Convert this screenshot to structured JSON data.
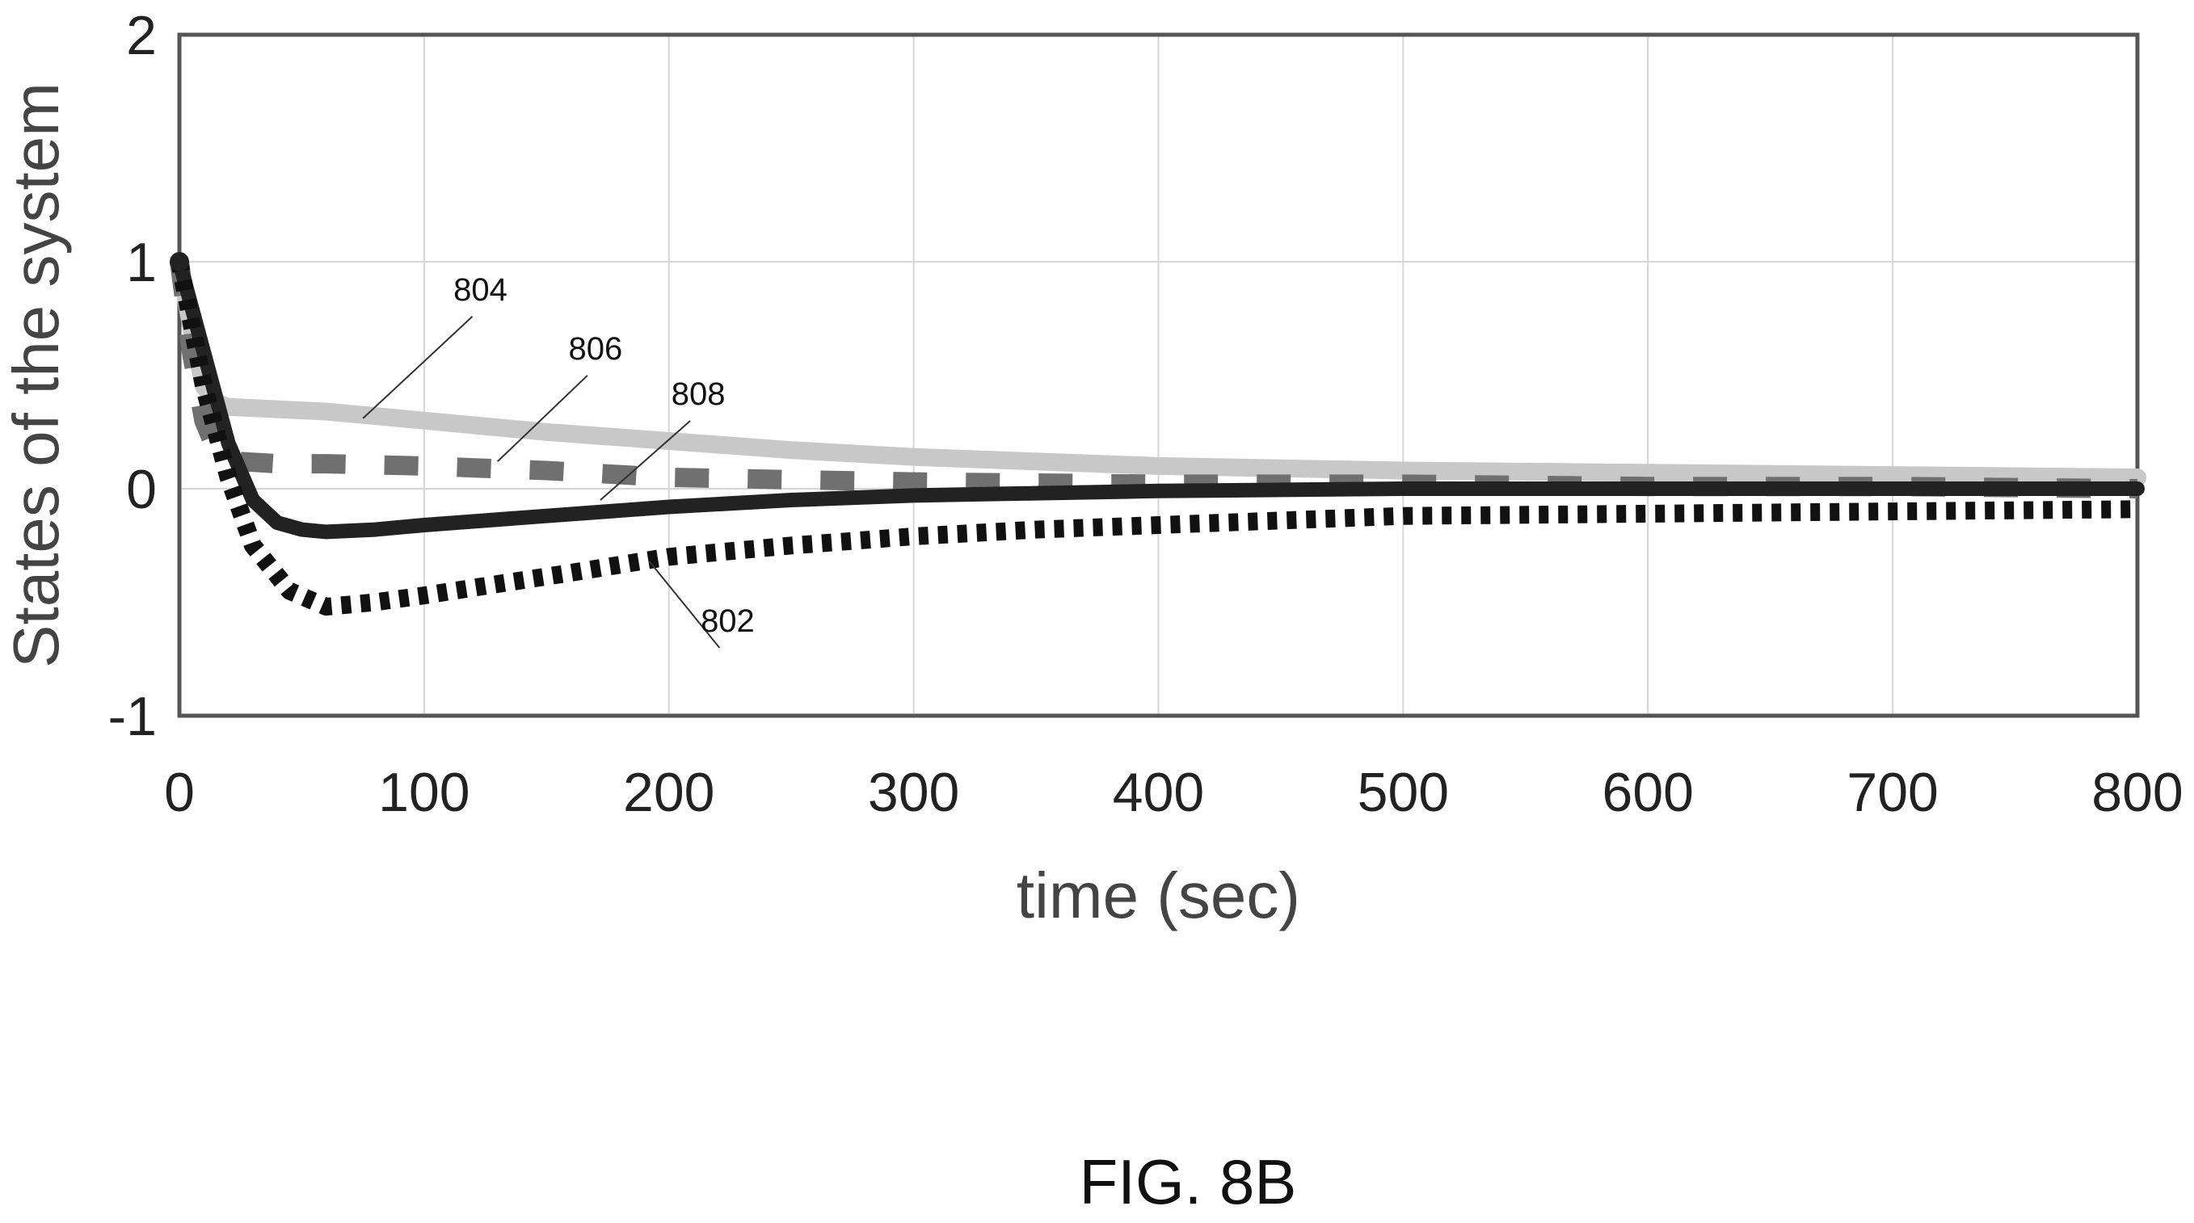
{
  "chart_data": {
    "type": "line",
    "title": "",
    "xlabel": "time (sec)",
    "ylabel": "States of the system",
    "xlim": [
      0,
      800
    ],
    "ylim": [
      -1,
      2
    ],
    "xticks": [
      0,
      100,
      200,
      300,
      400,
      500,
      600,
      700,
      800
    ],
    "yticks": [
      2,
      1,
      0,
      -1
    ],
    "xtick_labels": [
      "0",
      "100",
      "200",
      "300",
      "400",
      "500",
      "600",
      "700",
      "800"
    ],
    "ytick_labels": [
      "2",
      "1",
      "0",
      "-1"
    ],
    "grid": true,
    "legend": "none",
    "series": [
      {
        "ref": "802",
        "style": "dotted",
        "color": "#111111",
        "x": [
          0,
          10,
          20,
          30,
          45,
          60,
          80,
          100,
          130,
          160,
          200,
          250,
          300,
          350,
          400,
          500,
          600,
          700,
          800
        ],
        "y": [
          1.0,
          0.45,
          0.05,
          -0.25,
          -0.45,
          -0.52,
          -0.5,
          -0.47,
          -0.42,
          -0.37,
          -0.3,
          -0.25,
          -0.21,
          -0.18,
          -0.16,
          -0.12,
          -0.11,
          -0.1,
          -0.09
        ]
      },
      {
        "ref": "804",
        "style": "solid",
        "color": "#c8c8c8",
        "x": [
          0,
          5,
          10,
          15,
          20,
          40,
          60,
          80,
          100,
          150,
          200,
          250,
          300,
          350,
          400,
          500,
          600,
          700,
          800
        ],
        "y": [
          1.0,
          0.7,
          0.45,
          0.38,
          0.36,
          0.35,
          0.34,
          0.32,
          0.3,
          0.25,
          0.21,
          0.17,
          0.14,
          0.12,
          0.1,
          0.08,
          0.07,
          0.06,
          0.05
        ]
      },
      {
        "ref": "806",
        "style": "dashed",
        "color": "#707070",
        "x": [
          0,
          5,
          10,
          15,
          25,
          40,
          60,
          100,
          150,
          200,
          250,
          300,
          400,
          500,
          600,
          700,
          800
        ],
        "y": [
          1.0,
          0.6,
          0.3,
          0.17,
          0.12,
          0.11,
          0.11,
          0.1,
          0.08,
          0.05,
          0.04,
          0.03,
          0.02,
          0.02,
          0.01,
          0.01,
          0.0
        ]
      },
      {
        "ref": "808",
        "style": "solid",
        "color": "#222222",
        "x": [
          0,
          10,
          20,
          30,
          40,
          50,
          60,
          80,
          100,
          150,
          200,
          250,
          300,
          350,
          400,
          500,
          600,
          700,
          800
        ],
        "y": [
          1.0,
          0.6,
          0.2,
          -0.05,
          -0.15,
          -0.18,
          -0.19,
          -0.18,
          -0.16,
          -0.12,
          -0.08,
          -0.05,
          -0.03,
          -0.02,
          -0.01,
          0.0,
          0.0,
          0.0,
          0.0
        ]
      }
    ],
    "annotations": [
      {
        "text": "804",
        "x": 123,
        "y": 0.83,
        "arrow_to": [
          75,
          0.31
        ]
      },
      {
        "text": "806",
        "x": 170,
        "y": 0.57,
        "arrow_to": [
          130,
          0.12
        ]
      },
      {
        "text": "808",
        "x": 212,
        "y": 0.37,
        "arrow_to": [
          172,
          -0.05
        ]
      },
      {
        "text": "802",
        "x": 224,
        "y": -0.63,
        "arrow_to": [
          192,
          -0.32
        ]
      }
    ]
  },
  "figure_label": "FIG. 8B"
}
